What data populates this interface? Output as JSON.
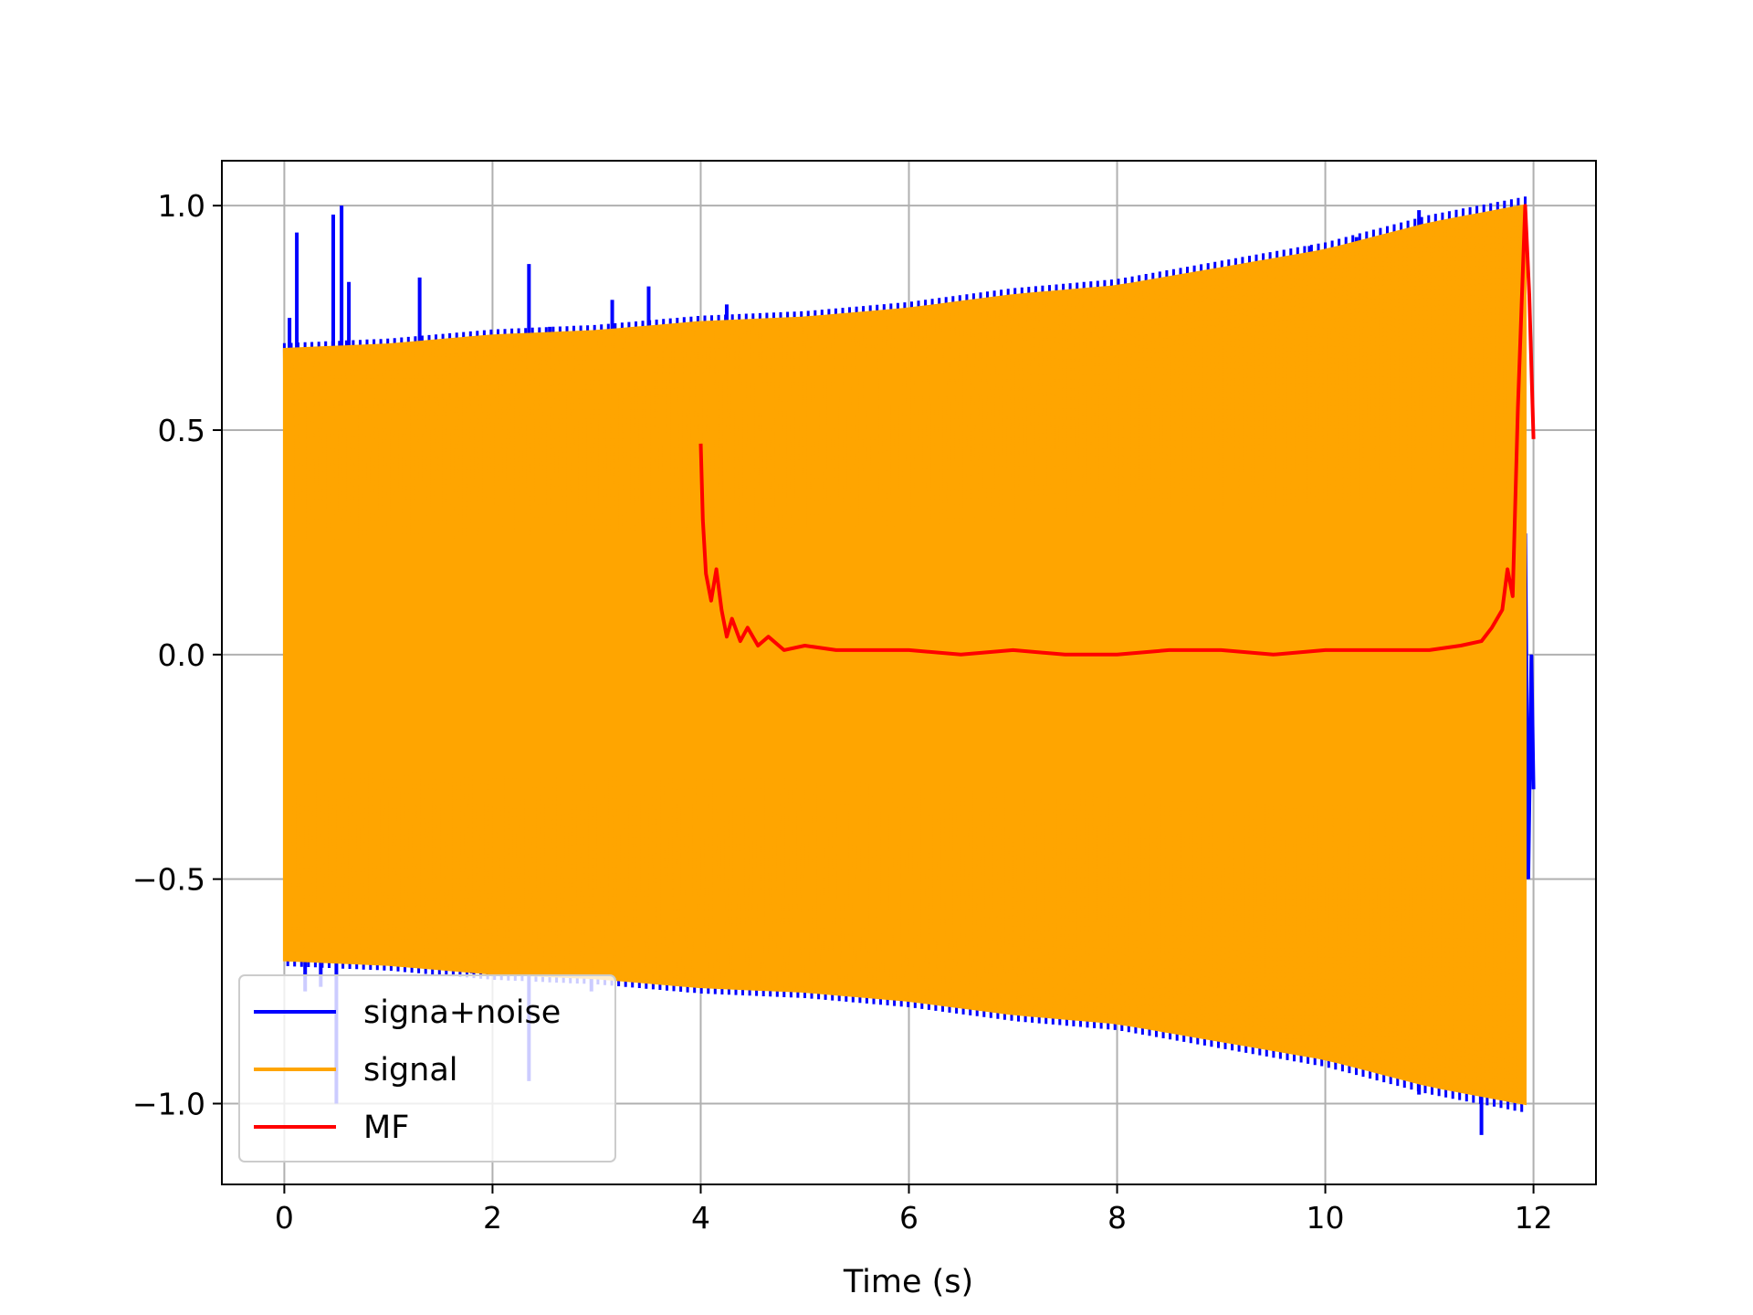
{
  "chart_data": {
    "type": "line",
    "title": "",
    "xlabel": "Time (s)",
    "ylabel": "",
    "xlim": [
      -0.6,
      12.6
    ],
    "ylim": [
      -1.18,
      1.1
    ],
    "xticks": [
      0,
      2,
      4,
      6,
      8,
      10,
      12
    ],
    "xtick_labels": [
      "0",
      "2",
      "4",
      "6",
      "8",
      "10",
      "12"
    ],
    "yticks": [
      -1.0,
      -0.5,
      0.0,
      0.5,
      1.0
    ],
    "ytick_labels": [
      "−1.0",
      "−0.5",
      "0.0",
      "0.5",
      "1.0"
    ],
    "grid": true,
    "legend_position": "lower-left",
    "series": [
      {
        "name": "signa+noise",
        "color": "#0000ff",
        "x_range": [
          0,
          12
        ],
        "envelope_x": [
          0,
          1,
          2,
          3,
          4,
          5,
          6,
          7,
          8,
          9,
          10,
          11,
          11.92
        ],
        "envelope_y": [
          0.68,
          0.69,
          0.71,
          0.72,
          0.74,
          0.75,
          0.77,
          0.8,
          0.82,
          0.86,
          0.9,
          0.96,
          1.0
        ],
        "spikes": [
          {
            "x": 0.05,
            "y": 0.75
          },
          {
            "x": 0.12,
            "y": 0.94
          },
          {
            "x": 0.2,
            "y": -0.75
          },
          {
            "x": 0.47,
            "y": 0.98
          },
          {
            "x": 0.55,
            "y": 1.0
          },
          {
            "x": 0.62,
            "y": 0.83
          },
          {
            "x": 0.5,
            "y": -1.0
          },
          {
            "x": 0.35,
            "y": -0.74
          },
          {
            "x": 1.3,
            "y": 0.84
          },
          {
            "x": 1.8,
            "y": -0.71
          },
          {
            "x": 2.35,
            "y": 0.87
          },
          {
            "x": 2.35,
            "y": -0.95
          },
          {
            "x": 2.55,
            "y": 0.73
          },
          {
            "x": 2.95,
            "y": -0.75
          },
          {
            "x": 3.15,
            "y": 0.79
          },
          {
            "x": 3.4,
            "y": -0.73
          },
          {
            "x": 3.5,
            "y": 0.82
          },
          {
            "x": 4.25,
            "y": 0.78
          },
          {
            "x": 7.6,
            "y": 0.81
          },
          {
            "x": 9.85,
            "y": 0.91
          },
          {
            "x": 10.3,
            "y": 0.93
          },
          {
            "x": 10.9,
            "y": 0.99
          },
          {
            "x": 10.9,
            "y": -0.98
          },
          {
            "x": 11.5,
            "y": -1.07
          }
        ],
        "tail": {
          "x": [
            11.92,
            11.95,
            11.98,
            12.0
          ],
          "y": [
            0.27,
            -0.5,
            0.0,
            -0.3
          ]
        }
      },
      {
        "name": "signal",
        "color": "#ffa500",
        "x_range": [
          0,
          11.92
        ],
        "envelope_x": [
          0,
          1,
          2,
          3,
          4,
          5,
          6,
          7,
          8,
          9,
          10,
          11,
          11.92
        ],
        "envelope_y": [
          0.68,
          0.69,
          0.71,
          0.72,
          0.74,
          0.75,
          0.77,
          0.8,
          0.82,
          0.86,
          0.9,
          0.96,
          1.0
        ]
      },
      {
        "name": "MF",
        "color": "#ff0000",
        "x": [
          4.0,
          4.02,
          4.05,
          4.1,
          4.15,
          4.2,
          4.25,
          4.3,
          4.38,
          4.45,
          4.55,
          4.65,
          4.8,
          5.0,
          5.3,
          5.6,
          6.0,
          6.5,
          7.0,
          7.5,
          8.0,
          8.5,
          9.0,
          9.5,
          10.0,
          10.5,
          11.0,
          11.3,
          11.5,
          11.6,
          11.7,
          11.75,
          11.8,
          11.85,
          11.92,
          11.96,
          12.0
        ],
        "y": [
          0.47,
          0.3,
          0.18,
          0.12,
          0.19,
          0.1,
          0.04,
          0.08,
          0.03,
          0.06,
          0.02,
          0.04,
          0.01,
          0.02,
          0.01,
          0.01,
          0.01,
          0.0,
          0.01,
          0.0,
          0.0,
          0.01,
          0.01,
          0.0,
          0.01,
          0.01,
          0.01,
          0.02,
          0.03,
          0.06,
          0.1,
          0.19,
          0.13,
          0.55,
          1.0,
          0.8,
          0.48
        ]
      }
    ]
  }
}
